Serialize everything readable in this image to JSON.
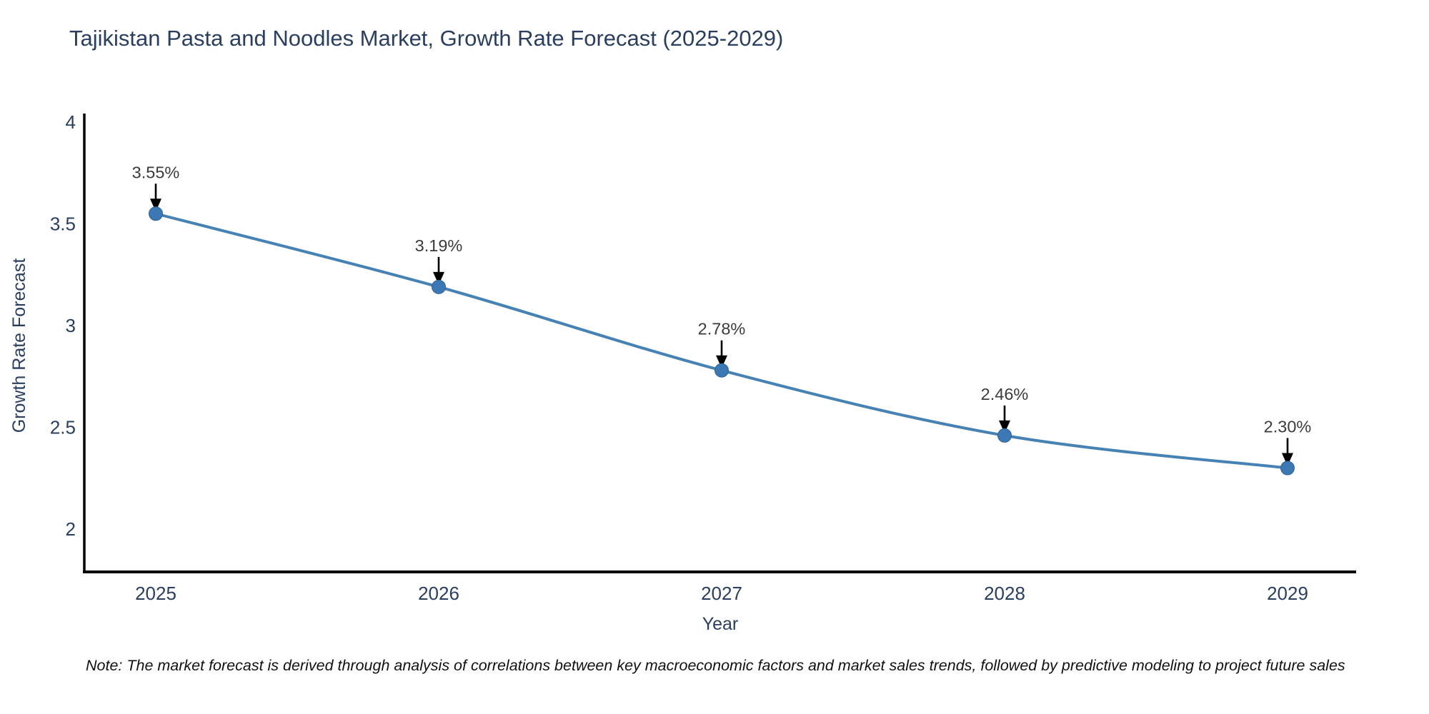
{
  "title": "Tajikistan Pasta and Noodles Market, Growth Rate Forecast (2025-2029)",
  "note": "Note: The market forecast is derived through analysis of correlations between key macroeconomic factors and market sales trends, followed by predictive modeling to project future sales",
  "chart_data": {
    "type": "line",
    "curve": "spline",
    "title": "Tajikistan Pasta and Noodles Market, Growth Rate Forecast (2025-2029)",
    "xlabel": "Year",
    "ylabel": "Growth Rate Forecast",
    "x": [
      2025,
      2026,
      2027,
      2028,
      2029
    ],
    "series": [
      {
        "name": "Growth Rate Forecast",
        "values": [
          3.55,
          3.19,
          2.78,
          2.46,
          2.3
        ]
      }
    ],
    "point_labels": [
      "3.55%",
      "3.19%",
      "2.78%",
      "2.46%",
      "2.30%"
    ],
    "xtick_labels": [
      "2025",
      "2026",
      "2027",
      "2028",
      "2029"
    ],
    "ytick_values": [
      4,
      3.5,
      3,
      2.5,
      2
    ],
    "ytick_labels": [
      "4",
      "3.5",
      "3",
      "2.5",
      "2"
    ],
    "ylim": [
      1.79,
      4.04
    ],
    "grid": false,
    "legend": "none",
    "colors": {
      "line": "#4682b4",
      "marker": "#3c78b4",
      "marker_edge": "#2f6496",
      "axis": "#000000",
      "tick_text": "#2a3f5f",
      "annotation_text": "#3b3b3b",
      "annotation_arrow": "#000000",
      "title_text": "#2a3f5f",
      "background": "#ffffff"
    }
  }
}
